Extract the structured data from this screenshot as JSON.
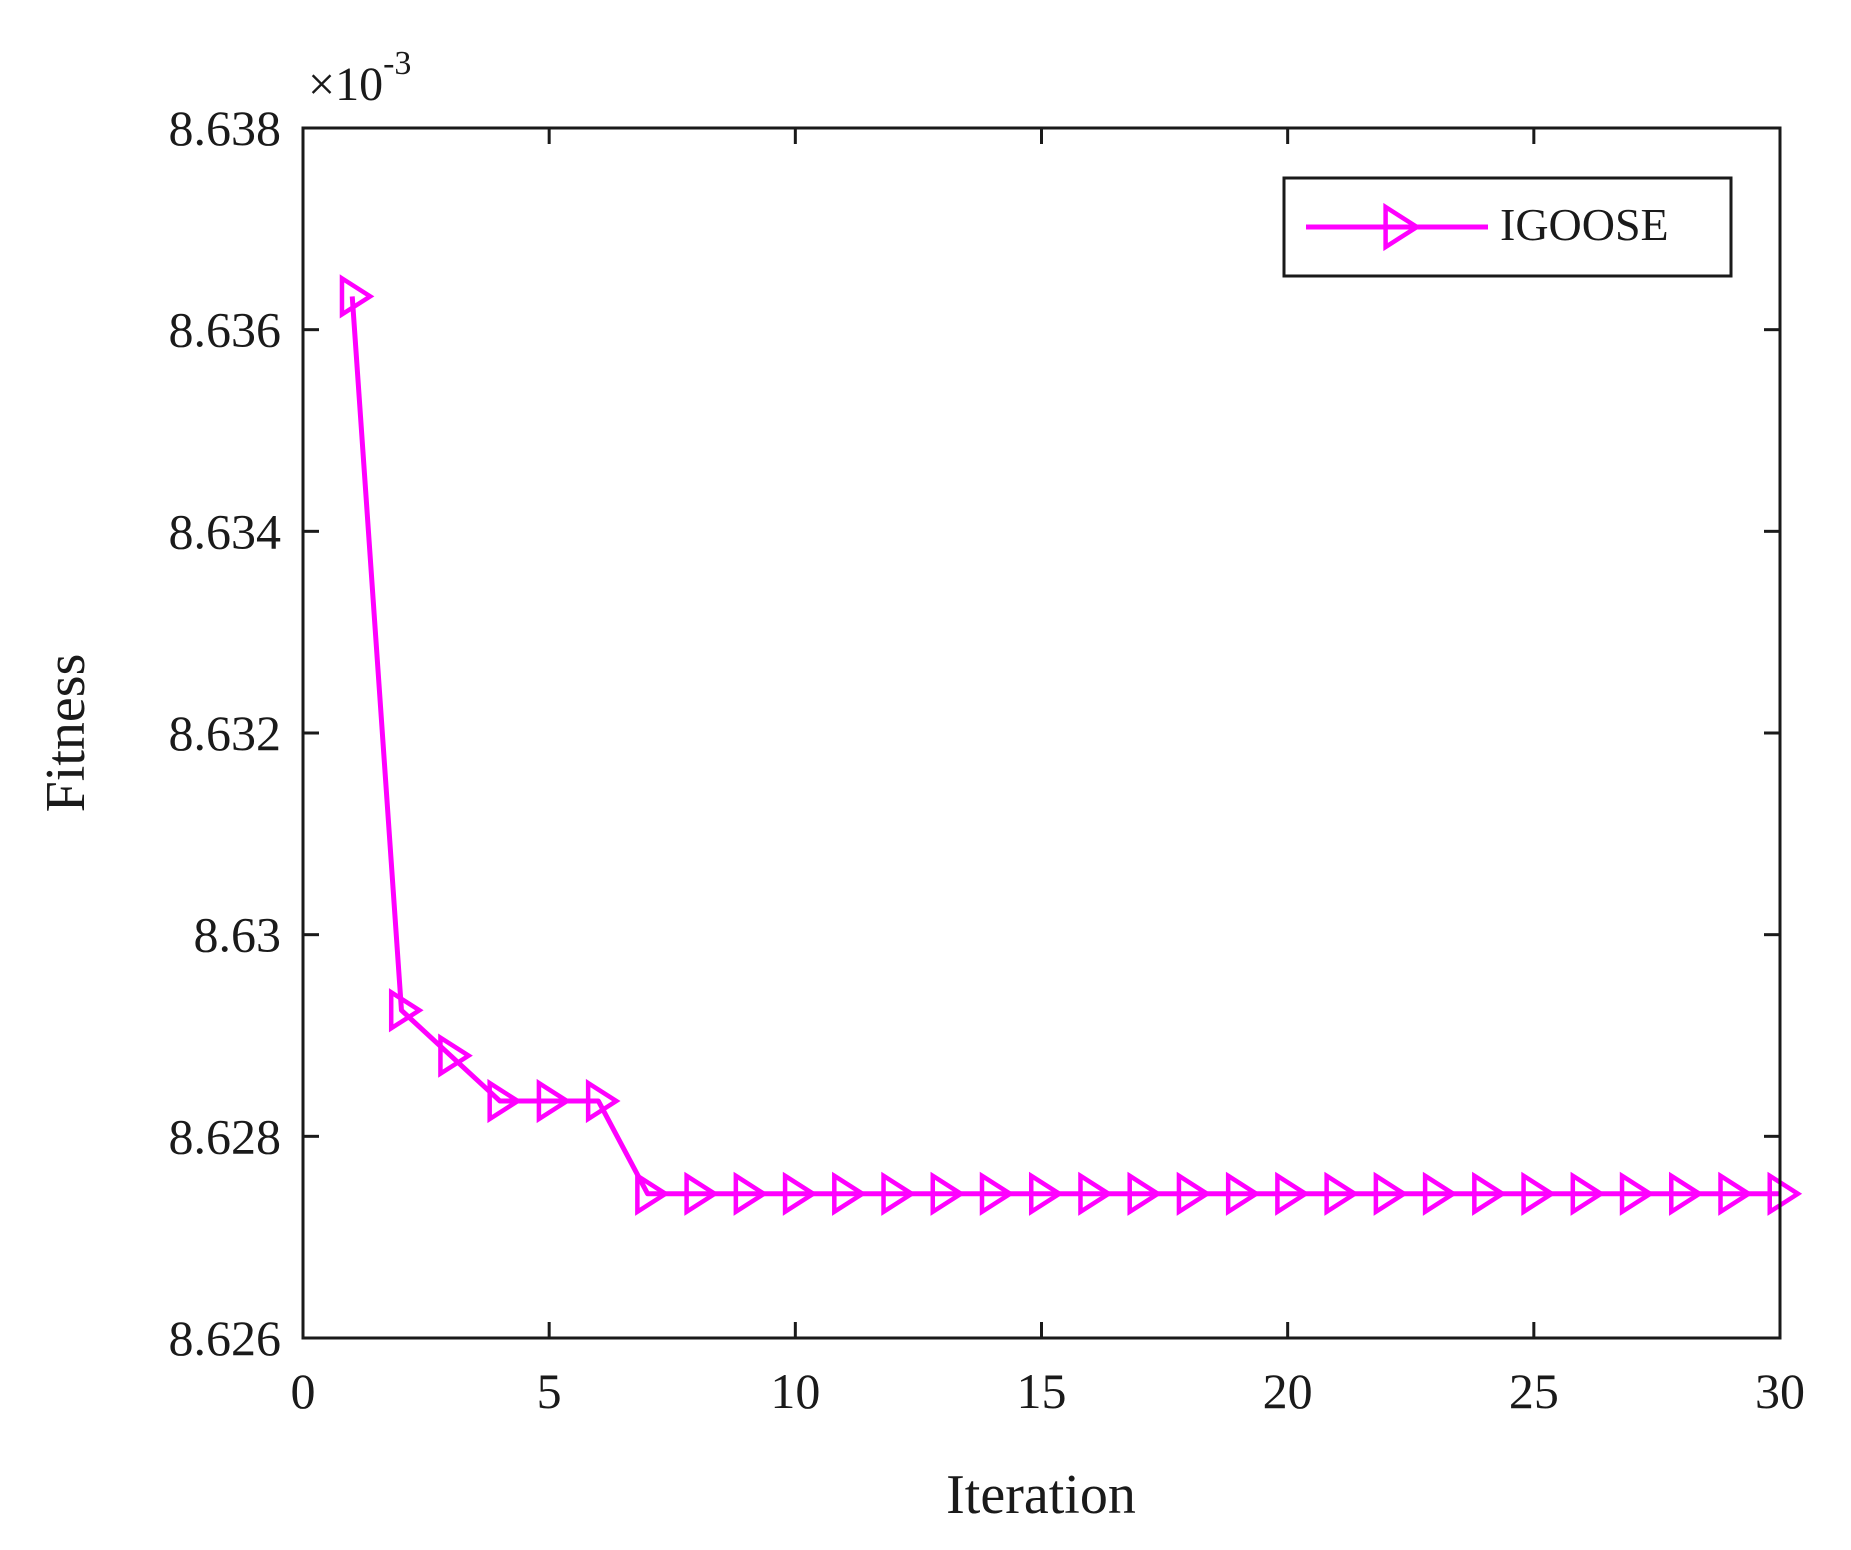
{
  "chart_data": {
    "type": "line",
    "title": "",
    "xlabel": "Iteration",
    "ylabel": "Fitness",
    "exponent_label": {
      "base": "×10",
      "power": "-3"
    },
    "xlim": [
      0,
      30
    ],
    "ylim": [
      8.626,
      8.638
    ],
    "xticks": [
      0,
      5,
      10,
      15,
      20,
      25,
      30
    ],
    "xtick_labels": [
      "0",
      "5",
      "10",
      "15",
      "20",
      "25",
      "30"
    ],
    "yticks": [
      8.626,
      8.628,
      8.63,
      8.632,
      8.634,
      8.636,
      8.638
    ],
    "ytick_labels": [
      "8.626",
      "8.628",
      "8.63",
      "8.632",
      "8.634",
      "8.636",
      "8.638"
    ],
    "grid": false,
    "legend_position": "top-right",
    "series": [
      {
        "name": "IGOOSE",
        "color": "#ff00ff",
        "marker": "right-triangle",
        "x": [
          1,
          2,
          3,
          4,
          5,
          6,
          7,
          8,
          9,
          10,
          11,
          12,
          13,
          14,
          15,
          16,
          17,
          18,
          19,
          20,
          21,
          22,
          23,
          24,
          25,
          26,
          27,
          28,
          29,
          30
        ],
        "values": [
          8.63633,
          8.62925,
          8.6288,
          8.62835,
          8.62835,
          8.62835,
          8.62743,
          8.62743,
          8.62743,
          8.62743,
          8.62743,
          8.62743,
          8.62743,
          8.62743,
          8.62743,
          8.62743,
          8.62743,
          8.62743,
          8.62743,
          8.62743,
          8.62743,
          8.62743,
          8.62743,
          8.62743,
          8.62743,
          8.62743,
          8.62743,
          8.62743,
          8.62743,
          8.62743
        ]
      }
    ]
  }
}
